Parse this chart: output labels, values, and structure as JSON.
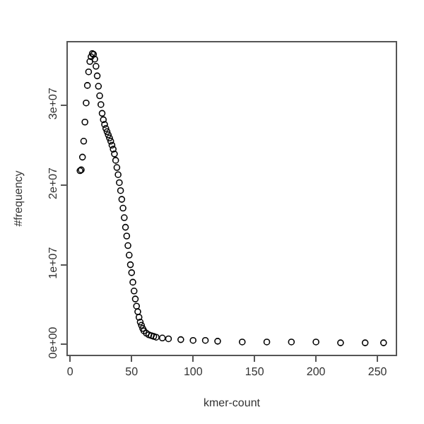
{
  "chart_data": {
    "type": "scatter",
    "xlabel": "kmer-count",
    "ylabel": "#frequency",
    "marker": "circle",
    "x": [
      8,
      9,
      10,
      11,
      12,
      13,
      14,
      15,
      16,
      17,
      18,
      19,
      20,
      21,
      22,
      23,
      24,
      25,
      26,
      27,
      28,
      29,
      30,
      31,
      32,
      33,
      34,
      35,
      36,
      37,
      38,
      39,
      40,
      41,
      42,
      43,
      44,
      45,
      46,
      47,
      48,
      49,
      50,
      51,
      52,
      53,
      54,
      55,
      56,
      57,
      58,
      59,
      60,
      62,
      64,
      66,
      68,
      70,
      75,
      80,
      90,
      100,
      110,
      120,
      140,
      160,
      180,
      200,
      220,
      240,
      255
    ],
    "series": [
      {
        "color": "#000000",
        "values": [
          21800000,
          21900000,
          23500000,
          25500000,
          27900000,
          30300000,
          32500000,
          34200000,
          35500000,
          36100000,
          36500000,
          36400000,
          35800000,
          34900000,
          33700000,
          32400000,
          31200000,
          30100000,
          29000000,
          28200000,
          27600000,
          27100000,
          26700000,
          26300000,
          25900000,
          25500000,
          25000000,
          24500000,
          23900000,
          23100000,
          22200000,
          21300000,
          20300000,
          19300000,
          18200000,
          17100000,
          15900000,
          14700000,
          13600000,
          12400000,
          11200000,
          10000000,
          9000000,
          7800000,
          6700000,
          5700000,
          4800000,
          4100000,
          3400000,
          2800000,
          2400000,
          2000000,
          1700000,
          1400000,
          1200000,
          1100000,
          1000000,
          900000,
          800000,
          700000,
          600000,
          500000,
          500000,
          400000,
          300000,
          300000,
          300000,
          300000,
          200000,
          200000,
          200000
        ]
      }
    ],
    "xlim": [
      -1.9,
      264.9
    ],
    "ylim": [
      -1300000,
      37900000
    ],
    "xticks": [
      0,
      50,
      100,
      150,
      200,
      250
    ],
    "yticks": [
      {
        "value": 0,
        "label": "0e+00"
      },
      {
        "value": 10000000,
        "label": "1e+07"
      },
      {
        "value": 20000000,
        "label": "2e+07"
      },
      {
        "value": 30000000,
        "label": "3e+07"
      }
    ]
  }
}
